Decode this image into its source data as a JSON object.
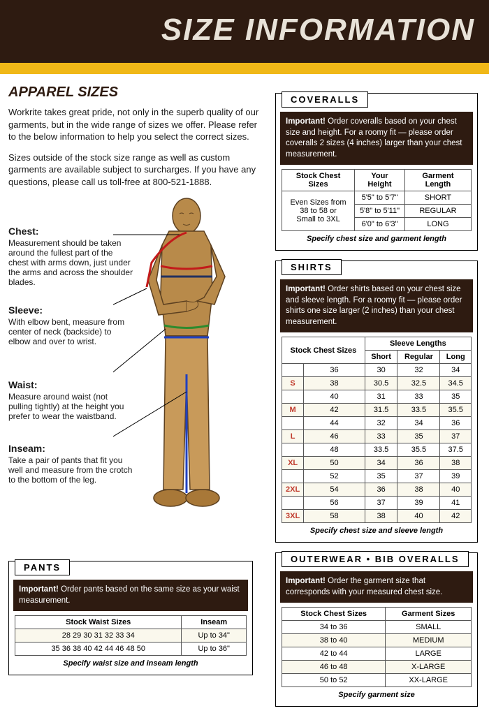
{
  "header": {
    "title": "SIZE INFORMATION"
  },
  "colors": {
    "dark": "#2e1b11",
    "yellow": "#f0b818",
    "stripe": "#faf8ed"
  },
  "apparel": {
    "heading": "APPAREL SIZES",
    "para1": "Workrite takes great pride, not only in the superb quality of our garments, but in the wide range of sizes we offer.  Please refer to the below information to help you select the correct sizes.",
    "para2": "Sizes outside of the stock size range as well as custom garments are available subject to surcharges.  If you have any questions, please call us toll-free at 800-521-1888."
  },
  "measurements": {
    "chest": {
      "label": "Chest:",
      "desc": "Measurement should be taken around the fullest part of the chest with arms down, just under the arms and across the shoulder blades."
    },
    "sleeve": {
      "label": "Sleeve:",
      "desc": "With elbow bent, measure from center of neck (backside) to elbow and over to wrist."
    },
    "waist": {
      "label": "Waist:",
      "desc": "Measure around waist (not pulling tightly) at the height you prefer to wear the waistband."
    },
    "inseam": {
      "label": "Inseam:",
      "desc": "Take a pair of pants that fit you well and measure from the crotch to the bottom of the leg."
    }
  },
  "pants": {
    "header": "PANTS",
    "important": "Order pants based on the same size as your waist measurement.",
    "th_waist": "Stock Waist Sizes",
    "th_inseam": "Inseam",
    "row1_sizes": "28  29  30  31  32  33  34",
    "row1_inseam": "Up to 34\"",
    "row2_sizes": "35  36  38  40  42  44  46  48  50",
    "row2_inseam": "Up to 36\"",
    "caption": "Specify waist size and inseam length"
  },
  "coveralls": {
    "header": "COVERALLS",
    "important": "Order coveralls based on your chest size and height.  For a roomy fit — please order coveralls 2 sizes (4 inches) larger than your chest measurement.",
    "th_chest": "Stock Chest Sizes",
    "th_height": "Your Height",
    "th_garment": "Garment Length",
    "chest_line1": "Even Sizes from",
    "chest_line2": "38  to  58 or",
    "chest_line3": "Small to 3XL",
    "r1h": "5'5\" to 5'7\"",
    "r1g": "SHORT",
    "r2h": "5'8\" to 5'11\"",
    "r2g": "REGULAR",
    "r3h": "6'0\" to 6'3\"",
    "r3g": "LONG",
    "caption": "Specify chest size and garment length"
  },
  "shirts": {
    "header": "SHIRTS",
    "important": "Order shirts based on your chest size and sleeve length.  For a roomy fit — please order shirts one size larger (2 inches) than your chest measurement.",
    "th_stock_chest": "Stock Chest Sizes",
    "th_sleeve": "Sleeve Lengths",
    "th_short": "Short",
    "th_regular": "Regular",
    "th_long": "Long",
    "rows": [
      {
        "lbl": "",
        "chest": "36",
        "short": "30",
        "reg": "32",
        "long": "34"
      },
      {
        "lbl": "S",
        "chest": "38",
        "short": "30.5",
        "reg": "32.5",
        "long": "34.5"
      },
      {
        "lbl": "",
        "chest": "40",
        "short": "31",
        "reg": "33",
        "long": "35"
      },
      {
        "lbl": "M",
        "chest": "42",
        "short": "31.5",
        "reg": "33.5",
        "long": "35.5"
      },
      {
        "lbl": "",
        "chest": "44",
        "short": "32",
        "reg": "34",
        "long": "36"
      },
      {
        "lbl": "L",
        "chest": "46",
        "short": "33",
        "reg": "35",
        "long": "37"
      },
      {
        "lbl": "",
        "chest": "48",
        "short": "33.5",
        "reg": "35.5",
        "long": "37.5"
      },
      {
        "lbl": "XL",
        "chest": "50",
        "short": "34",
        "reg": "36",
        "long": "38"
      },
      {
        "lbl": "",
        "chest": "52",
        "short": "35",
        "reg": "37",
        "long": "39"
      },
      {
        "lbl": "2XL",
        "chest": "54",
        "short": "36",
        "reg": "38",
        "long": "40"
      },
      {
        "lbl": "",
        "chest": "56",
        "short": "37",
        "reg": "39",
        "long": "41"
      },
      {
        "lbl": "3XL",
        "chest": "58",
        "short": "38",
        "reg": "40",
        "long": "42"
      }
    ],
    "caption": "Specify chest size and sleeve length"
  },
  "outerwear": {
    "header": "OUTERWEAR • BIB OVERALLS",
    "important": "Order the garment size that corresponds with your measured chest size.",
    "th_chest": "Stock Chest Sizes",
    "th_garment": "Garment Sizes",
    "rows": [
      {
        "chest": "34 to 36",
        "size": "SMALL"
      },
      {
        "chest": "38 to 40",
        "size": "MEDIUM"
      },
      {
        "chest": "42 to 44",
        "size": "LARGE"
      },
      {
        "chest": "46 to 48",
        "size": "X-LARGE"
      },
      {
        "chest": "50 to 52",
        "size": "XX-LARGE"
      }
    ],
    "caption": "Specify garment size"
  }
}
